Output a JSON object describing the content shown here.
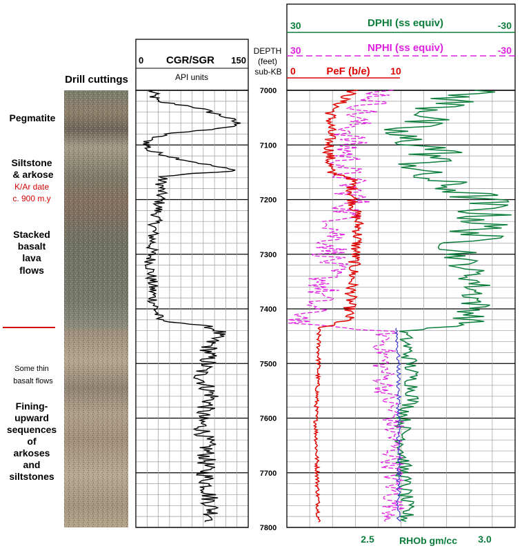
{
  "headers": {
    "drill_cuttings": "Drill cuttings",
    "gr_title": "CGR/SGR",
    "gr_min": "0",
    "gr_max": "150",
    "gr_units": "API units",
    "depth_line1": "DEPTH",
    "depth_line2": "(feet)",
    "depth_line3": "sub-KB",
    "dphi_title": "DPHI (ss equiv)",
    "dphi_left": "30",
    "dphi_right": "-30",
    "nphi_title": "NPHI (ss equiv)",
    "nphi_left": "30",
    "nphi_right": "-30",
    "pef_title": "PeF (b/e)",
    "pef_left": "0",
    "pef_right": "10",
    "rhob_title": "RHOb gm/cc",
    "rhob_tick1": "2.5",
    "rhob_tick2": "3.0"
  },
  "lithology": {
    "pegmatite": "Pegmatite",
    "siltstone_1": "Siltstone",
    "siltstone_2": "& arkose",
    "kar_1": "K/Ar date",
    "kar_2": "c. 900 m.y",
    "basalt_1": "Stacked",
    "basalt_2": "basalt",
    "basalt_3": "lava",
    "basalt_4": "flows",
    "thin_1": "Some thin",
    "thin_2": "basalt flows",
    "fining_1": "Fining-",
    "fining_2": "upward",
    "fining_3": "sequences",
    "fining_4": "of",
    "fining_5": "arkoses",
    "fining_6": "and",
    "fining_7": "siltstones"
  },
  "depth_ticks": [
    "7000",
    "7100",
    "7200",
    "7300",
    "7400",
    "7500",
    "7600",
    "7700",
    "7800"
  ],
  "colors": {
    "gr": "#000000",
    "dphi": "#0a7d3a",
    "nphi": "#e020e0",
    "pef": "#e00000",
    "rhob": "#3a3ad0",
    "boundary": "#d40000"
  },
  "chart_data": {
    "type": "line",
    "depth_range": [
      7000,
      7800
    ],
    "tracks": [
      {
        "curve": "CGR/SGR",
        "units": "API units",
        "range": [
          0,
          150
        ]
      },
      {
        "curve": "DPHI (ss equiv)",
        "range": [
          30,
          -30
        ]
      },
      {
        "curve": "NPHI (ss equiv)",
        "range": [
          30,
          -30
        ]
      },
      {
        "curve": "PeF (b/e)",
        "range": [
          0,
          10
        ]
      },
      {
        "curve": "RHOb gm/cc"
      }
    ],
    "grid": true,
    "formation_boundary_depth": 7435
  }
}
